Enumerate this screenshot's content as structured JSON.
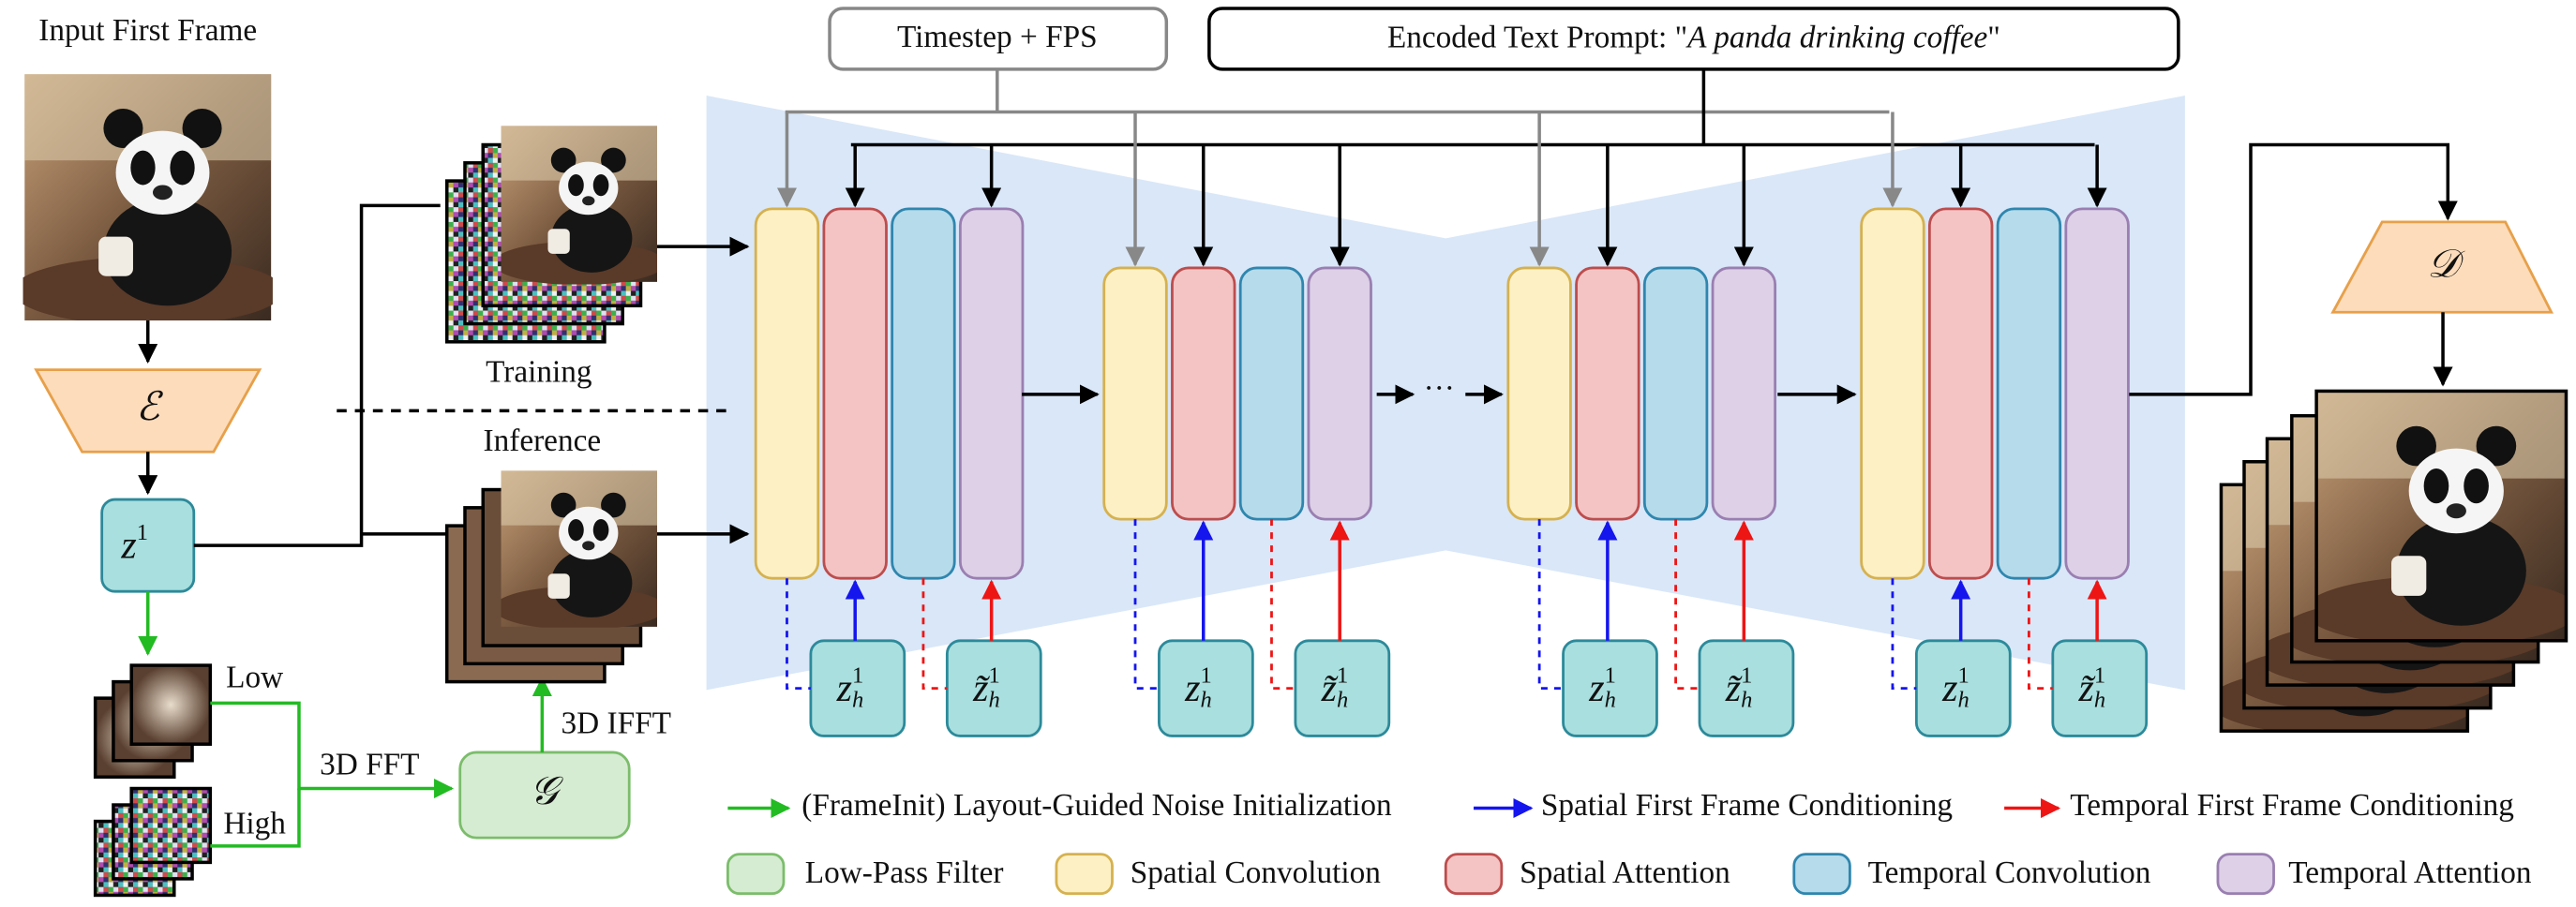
{
  "input": {
    "title": "Input First Frame"
  },
  "encoder": "ℰ",
  "decoder": "𝒟",
  "filter": "𝒢",
  "latent": {
    "base": "z",
    "sup": "1"
  },
  "training": "Training",
  "inference": "Inference",
  "low": "Low",
  "high": "High",
  "fft": "3D FFT",
  "ifft": "3D IFFT",
  "timestep": "Timestep + FPS",
  "prompt": {
    "prefix": "Encoded Text Prompt: \"",
    "text": "A panda drinking coffee",
    "suffix": "\""
  },
  "ellipsis": "···",
  "cond": {
    "spatial": {
      "base": "z",
      "sub": "h",
      "sup": "1"
    },
    "temporal": {
      "base": "z̃",
      "sub": "h",
      "sup": "1"
    }
  },
  "legend": {
    "arrows": [
      "(FrameInit) Layout-Guided Noise Initialization",
      "Spatial First Frame Conditioning",
      "Temporal First Frame Conditioning"
    ],
    "blocks": [
      "Low-Pass Filter",
      "Spatial Convolution",
      "Spatial Attention",
      "Temporal Convolution",
      "Temporal Attention"
    ]
  }
}
